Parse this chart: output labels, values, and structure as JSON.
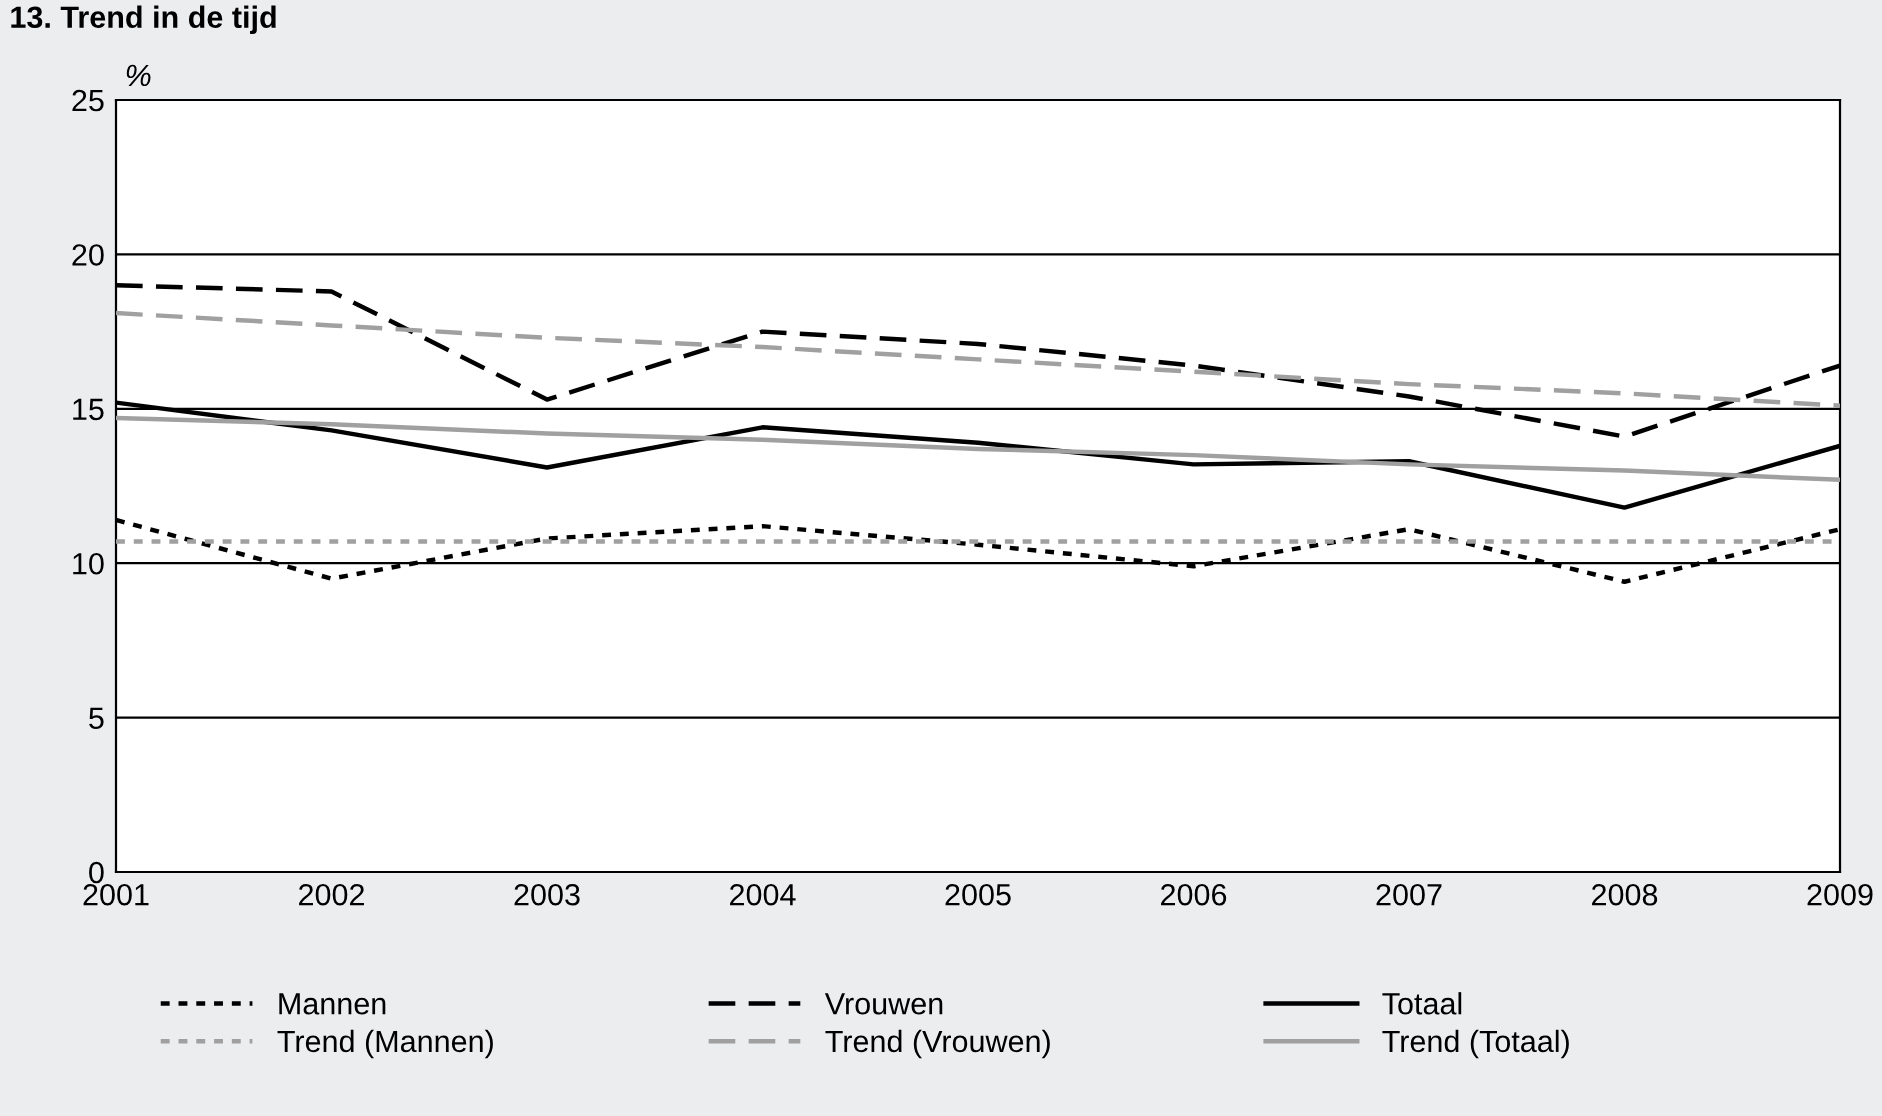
{
  "chart_data": {
    "type": "line",
    "title": "13. Trend in de tijd",
    "ylabel": "%",
    "x": [
      2001,
      2002,
      2003,
      2004,
      2005,
      2006,
      2007,
      2008,
      2009
    ],
    "xlim": [
      2001,
      2009
    ],
    "xticks": [
      2001,
      2002,
      2003,
      2004,
      2005,
      2006,
      2007,
      2008,
      2009
    ],
    "ylim": [
      0,
      25
    ],
    "yticks": [
      0,
      5,
      10,
      15,
      20,
      25
    ],
    "grid": "y",
    "legend": "bottom",
    "marker": "none",
    "series": [
      {
        "name": "Mannen",
        "color": "#000000",
        "line_style": "dotted",
        "values": [
          11.4,
          9.5,
          10.8,
          11.2,
          10.6,
          9.9,
          11.1,
          9.4,
          11.1
        ]
      },
      {
        "name": "Vrouwen",
        "color": "#000000",
        "line_style": "dashed",
        "values": [
          19.0,
          18.8,
          15.3,
          17.5,
          17.1,
          16.4,
          15.4,
          14.1,
          16.4
        ]
      },
      {
        "name": "Totaal",
        "color": "#000000",
        "line_style": "solid",
        "values": [
          15.2,
          14.3,
          13.1,
          14.4,
          13.9,
          13.2,
          13.3,
          11.8,
          13.8
        ]
      },
      {
        "name": "Trend (Mannen)",
        "color": "#a0a0a0",
        "line_style": "dotted",
        "values": [
          10.7,
          10.7,
          10.7,
          10.7,
          10.7,
          10.7,
          10.7,
          10.7,
          10.7
        ]
      },
      {
        "name": "Trend (Vrouwen)",
        "color": "#a0a0a0",
        "line_style": "dashed",
        "values": [
          18.1,
          17.7,
          17.3,
          17.0,
          16.6,
          16.2,
          15.8,
          15.5,
          15.1
        ]
      },
      {
        "name": "Trend (Totaal)",
        "color": "#a0a0a0",
        "line_style": "solid",
        "values": [
          14.7,
          14.5,
          14.2,
          14.0,
          13.7,
          13.5,
          13.2,
          13.0,
          12.7
        ]
      }
    ]
  }
}
